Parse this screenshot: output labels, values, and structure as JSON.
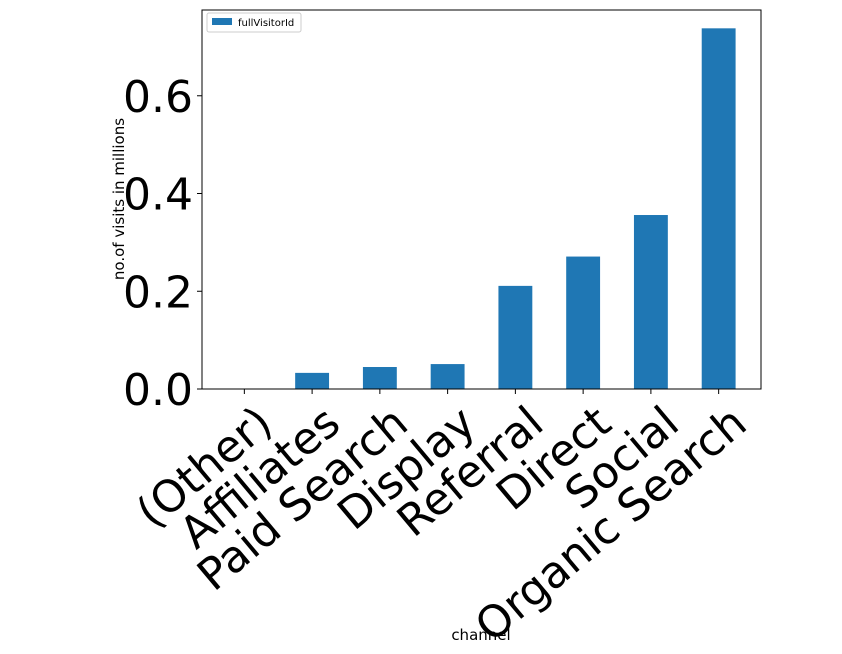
{
  "chart_data": {
    "type": "bar",
    "categories": [
      "(Other)",
      "Affiliates",
      "Paid Search",
      "Display",
      "Referral",
      "Direct",
      "Social",
      "Organic Search"
    ],
    "series": [
      {
        "name": "fullVisitorId",
        "values": [
          0.0001,
          0.033,
          0.045,
          0.051,
          0.211,
          0.271,
          0.356,
          0.738
        ]
      }
    ],
    "xlabel": "channel",
    "ylabel": "no.of visits in millions",
    "ylim": [
      0,
      0.7755
    ],
    "yticks": [
      0.0,
      0.2,
      0.4,
      0.6
    ],
    "ytick_labels": [
      "0.0",
      "0.2",
      "0.4",
      "0.6"
    ],
    "grid": false,
    "legend_position": "top-left",
    "bar_color": "#1f77b4"
  }
}
